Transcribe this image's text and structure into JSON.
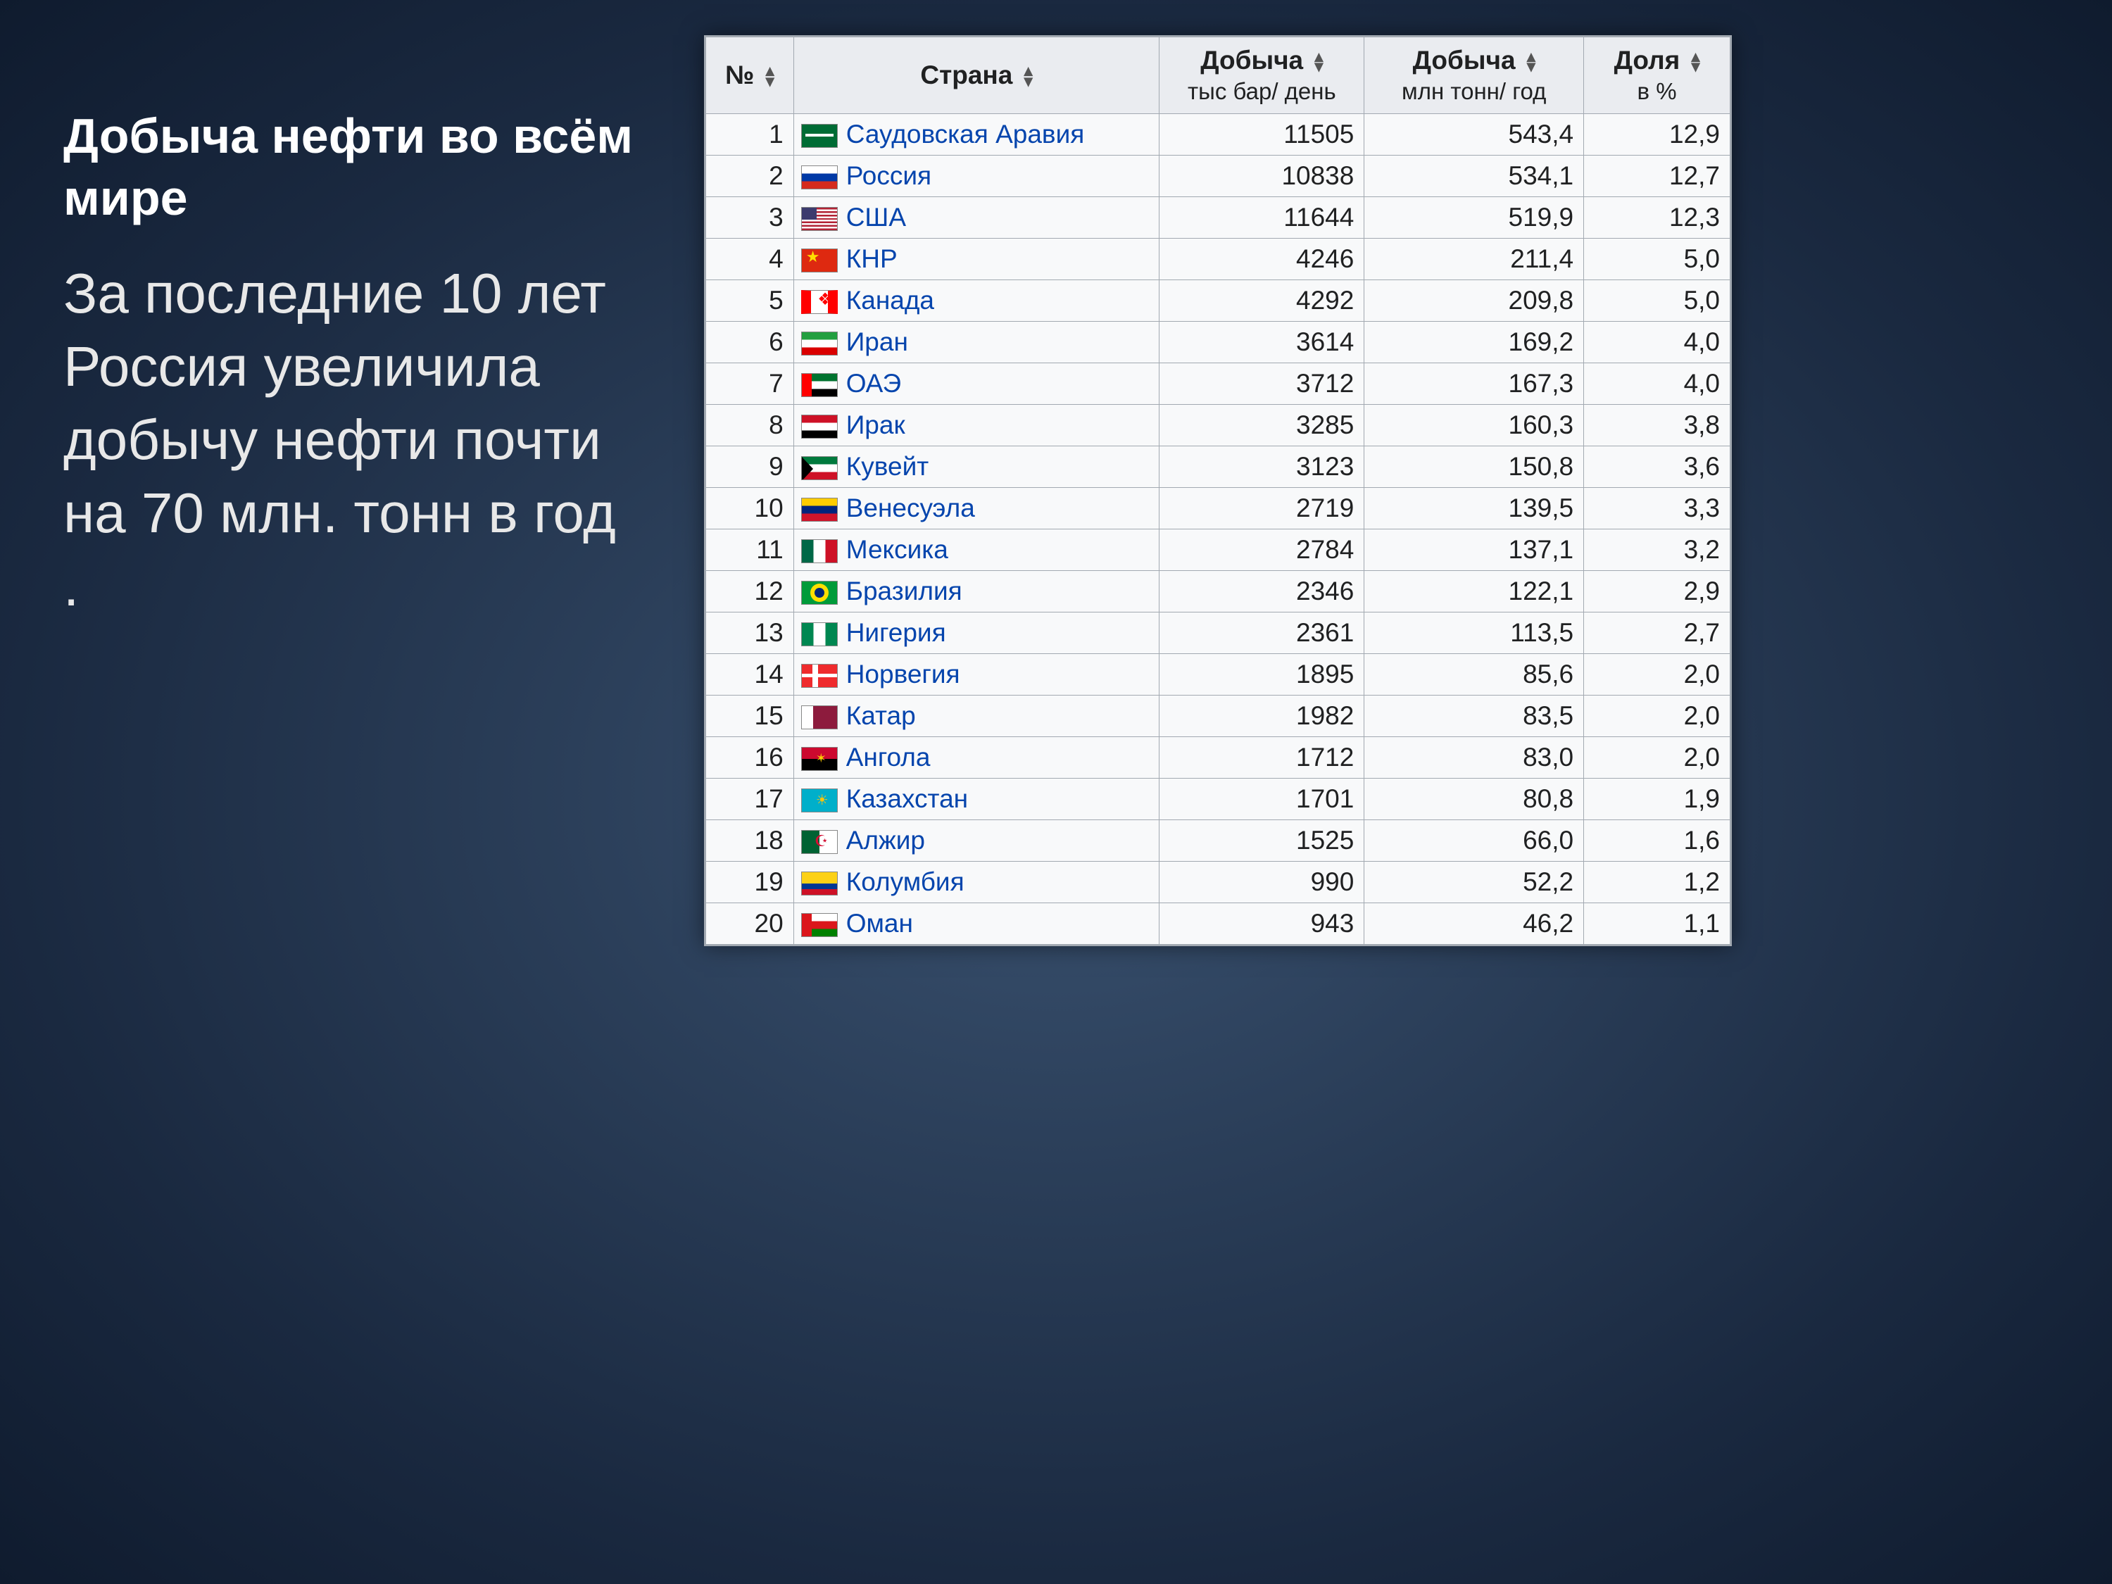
{
  "slide": {
    "heading": "Добыча нефти во всём мире",
    "subtext": "За последние 10 лет Россия увеличила добычу нефти почти на 70 млн. тонн в год ."
  },
  "table": {
    "columns": [
      {
        "label": "№",
        "sub": ""
      },
      {
        "label": "Страна",
        "sub": ""
      },
      {
        "label": "Добыча",
        "sub": "тыс бар/ день"
      },
      {
        "label": "Добыча",
        "sub": "млн тонн/ год"
      },
      {
        "label": "Доля",
        "sub": "в %"
      }
    ],
    "rows": [
      {
        "rank": "1",
        "flag": "f-sa",
        "country": "Саудовская Аравия",
        "bar": "11505",
        "ton": "543,4",
        "share": "12,9"
      },
      {
        "rank": "2",
        "flag": "f-ru",
        "country": "Россия",
        "bar": "10838",
        "ton": "534,1",
        "share": "12,7"
      },
      {
        "rank": "3",
        "flag": "f-us",
        "country": "США",
        "bar": "11644",
        "ton": "519,9",
        "share": "12,3"
      },
      {
        "rank": "4",
        "flag": "f-cn",
        "country": "КНР",
        "bar": "4246",
        "ton": "211,4",
        "share": "5,0"
      },
      {
        "rank": "5",
        "flag": "f-ca",
        "country": "Канада",
        "bar": "4292",
        "ton": "209,8",
        "share": "5,0"
      },
      {
        "rank": "6",
        "flag": "f-ir",
        "country": "Иран",
        "bar": "3614",
        "ton": "169,2",
        "share": "4,0"
      },
      {
        "rank": "7",
        "flag": "f-ae",
        "country": "ОАЭ",
        "bar": "3712",
        "ton": "167,3",
        "share": "4,0"
      },
      {
        "rank": "8",
        "flag": "f-iq",
        "country": "Ирак",
        "bar": "3285",
        "ton": "160,3",
        "share": "3,8"
      },
      {
        "rank": "9",
        "flag": "f-kw",
        "country": "Кувейт",
        "bar": "3123",
        "ton": "150,8",
        "share": "3,6"
      },
      {
        "rank": "10",
        "flag": "f-ve",
        "country": "Венесуэла",
        "bar": "2719",
        "ton": "139,5",
        "share": "3,3"
      },
      {
        "rank": "11",
        "flag": "f-mx",
        "country": "Мексика",
        "bar": "2784",
        "ton": "137,1",
        "share": "3,2"
      },
      {
        "rank": "12",
        "flag": "f-br",
        "country": "Бразилия",
        "bar": "2346",
        "ton": "122,1",
        "share": "2,9"
      },
      {
        "rank": "13",
        "flag": "f-ng",
        "country": "Нигерия",
        "bar": "2361",
        "ton": "113,5",
        "share": "2,7"
      },
      {
        "rank": "14",
        "flag": "f-no",
        "country": "Норвегия",
        "bar": "1895",
        "ton": "85,6",
        "share": "2,0"
      },
      {
        "rank": "15",
        "flag": "f-qa",
        "country": "Катар",
        "bar": "1982",
        "ton": "83,5",
        "share": "2,0"
      },
      {
        "rank": "16",
        "flag": "f-ao",
        "country": "Ангола",
        "bar": "1712",
        "ton": "83,0",
        "share": "2,0"
      },
      {
        "rank": "17",
        "flag": "f-kz",
        "country": "Казахстан",
        "bar": "1701",
        "ton": "80,8",
        "share": "1,9"
      },
      {
        "rank": "18",
        "flag": "f-dz",
        "country": "Алжир",
        "bar": "1525",
        "ton": "66,0",
        "share": "1,6"
      },
      {
        "rank": "19",
        "flag": "f-co",
        "country": "Колумбия",
        "bar": "990",
        "ton": "52,2",
        "share": "1,2"
      },
      {
        "rank": "20",
        "flag": "f-om",
        "country": "Оман",
        "bar": "943",
        "ton": "46,2",
        "share": "1,1"
      }
    ]
  },
  "style": {
    "background_gradient": [
      "#3a5270",
      "#1a2940",
      "#0f1b2e"
    ],
    "heading_color": "#ffffff",
    "subtext_color": "#e8e8e8",
    "table_bg": "#f8f9fa",
    "header_bg": "#eaecf0",
    "border_color": "#a2a9b1",
    "link_color": "#0645ad",
    "heading_fontsize": 70,
    "subtext_fontsize": 80,
    "table_fontsize": 37
  }
}
